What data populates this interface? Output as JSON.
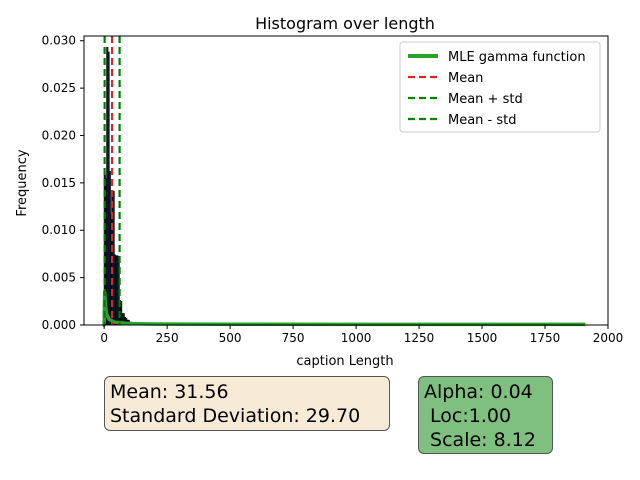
{
  "chart_data": {
    "type": "bar",
    "title": "Histogram over length",
    "xlabel": "caption Length",
    "ylabel": "Frequency",
    "xlim": [
      -80,
      2000
    ],
    "ylim": [
      0,
      0.0305
    ],
    "xticks": [
      0,
      250,
      500,
      750,
      1000,
      1250,
      1500,
      1750,
      2000
    ],
    "yticks": [
      0.0,
      0.005,
      0.01,
      0.015,
      0.02,
      0.025,
      0.03
    ],
    "xtick_labels": [
      "0",
      "250",
      "500",
      "750",
      "1000",
      "1250",
      "1500",
      "1750",
      "2000"
    ],
    "ytick_labels": [
      "0.000",
      "0.005",
      "0.010",
      "0.015",
      "0.020",
      "0.025",
      "0.030"
    ],
    "grid": false,
    "legend_position": "top-right",
    "histogram": {
      "bin_edges": [
        0,
        5,
        10,
        15,
        20,
        25,
        30,
        35,
        40,
        45,
        50,
        55,
        60,
        65,
        70,
        75,
        80,
        85,
        90,
        95,
        100,
        110,
        120,
        130,
        140,
        150,
        160
      ],
      "values": [
        0.0158,
        0.0154,
        0.0293,
        0.0288,
        0.0162,
        0.0117,
        0.0142,
        0.0141,
        0.0074,
        0.0073,
        0.0073,
        0.0072,
        0.0026,
        0.0025,
        0.0012,
        0.0012,
        0.0008,
        0.0007,
        0.0005,
        0.0005,
        0.0003,
        0.0002,
        0.0002,
        0.0001,
        0.0001,
        0.0001
      ],
      "color": "#1f3b73"
    },
    "series": [
      {
        "name": "MLE gamma function",
        "type": "line",
        "color": "#2ca02c",
        "x": [
          -5,
          0,
          2,
          5,
          10,
          20,
          40,
          100,
          200,
          500,
          1000,
          1500,
          1910
        ],
        "y": [
          0,
          0.0,
          0.0035,
          0.0021,
          0.0011,
          0.0006,
          0.0003,
          0.00015,
          0.0001,
          8e-05,
          7e-05,
          7e-05,
          7e-05
        ]
      },
      {
        "name": "Mean",
        "type": "vline",
        "x": 31.56,
        "color": "#d62728",
        "style": "dashed"
      },
      {
        "name": "Mean + std",
        "type": "vline",
        "x": 61.26,
        "color": "#008000",
        "style": "dashed"
      },
      {
        "name": "Mean - std",
        "type": "vline",
        "x": 1.86,
        "color": "#008000",
        "style": "dashed"
      }
    ]
  },
  "stats_box": {
    "line1": "Mean: 31.56",
    "line2": "Standard Deviation: 29.70"
  },
  "params_box": {
    "line1": "Alpha: 0.04",
    "line2": " Loc:1.00",
    "line3": " Scale: 8.12"
  }
}
